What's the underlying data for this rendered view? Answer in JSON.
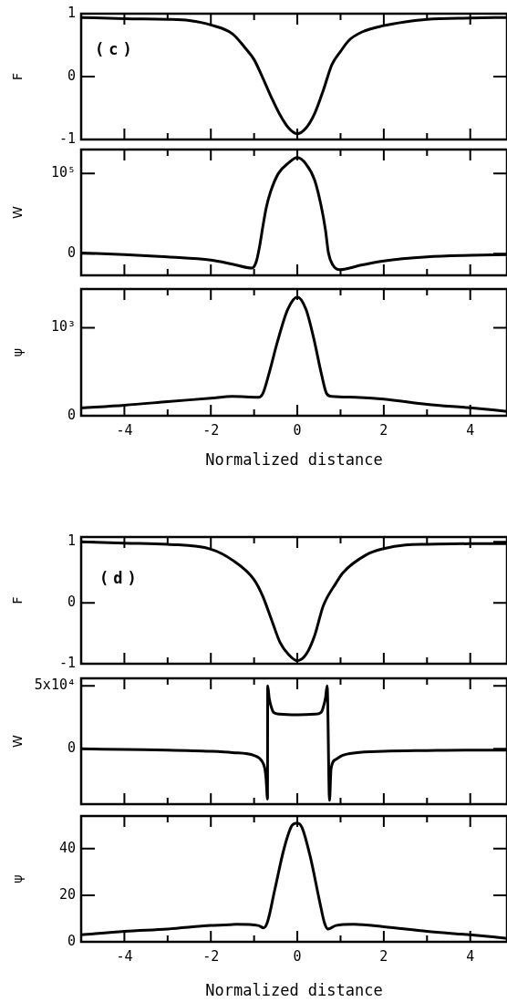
{
  "chart_data": [
    {
      "type": "line",
      "ylabel": "F",
      "annotations": [
        "(c)"
      ],
      "color": "#000000",
      "x": [
        -5,
        -4,
        -3,
        -2.5,
        -2,
        -1.5,
        -1.2,
        -1,
        -0.8,
        -0.6,
        -0.4,
        -0.2,
        0,
        0.2,
        0.4,
        0.6,
        0.8,
        1,
        1.2,
        1.5,
        2,
        2.5,
        3,
        4,
        4.85
      ],
      "values": [
        0.94,
        0.92,
        0.91,
        0.89,
        0.82,
        0.68,
        0.45,
        0.27,
        -0.02,
        -0.33,
        -0.61,
        -0.82,
        -0.91,
        -0.82,
        -0.59,
        -0.22,
        0.19,
        0.4,
        0.58,
        0.71,
        0.81,
        0.87,
        0.91,
        0.93,
        0.94
      ],
      "xlim": [
        -5,
        4.85
      ],
      "xticks": [
        -4,
        {
          "value": -3,
          "label": null
        },
        -2,
        {
          "value": -1,
          "label": null
        },
        0,
        {
          "value": 1,
          "label": null
        },
        2,
        {
          "value": 3,
          "label": null
        },
        4
      ],
      "ylim": [
        -1,
        1
      ],
      "yticks": [
        -1,
        0,
        1
      ],
      "tick_labels": "y"
    },
    {
      "type": "line",
      "ylabel": "W",
      "color": "#000000",
      "x": [
        -5,
        -4,
        -3,
        -2,
        -1.5,
        -1.05,
        -0.95,
        -0.87,
        -0.8,
        -0.72,
        -0.62,
        -0.44,
        -0.21,
        0,
        0.2,
        0.4,
        0.55,
        0.65,
        0.72,
        0.82,
        0.98,
        1.5,
        2,
        3,
        4,
        4.85
      ],
      "values": [
        1000,
        -1000,
        -4000,
        -8000,
        -13000,
        -18000,
        -10000,
        10000,
        33000,
        57000,
        77000,
        100000,
        113000,
        120000,
        112000,
        92000,
        60000,
        30000,
        1000,
        -14000,
        -20000,
        -14000,
        -9000,
        -4000,
        -2000,
        -1000
      ],
      "xlim": [
        -5,
        4.85
      ],
      "xticks": [
        -4,
        {
          "value": -3,
          "label": null
        },
        -2,
        {
          "value": -1,
          "label": null
        },
        0,
        {
          "value": 1,
          "label": null
        },
        2,
        {
          "value": 3,
          "label": null
        },
        4
      ],
      "ylim": [
        -27000,
        130000
      ],
      "yticks": [
        0,
        {
          "value": 100000,
          "label": "10⁵"
        }
      ],
      "tick_labels": "y"
    },
    {
      "type": "line",
      "ylabel": "ψ",
      "xlabel": "Normalized distance",
      "color": "#000000",
      "x": [
        -5,
        -4,
        -3,
        -2,
        -1.5,
        -0.9,
        -0.8,
        -0.66,
        -0.46,
        -0.22,
        0,
        0.2,
        0.38,
        0.56,
        0.68,
        0.8,
        1.35,
        2,
        3,
        4,
        4.85
      ],
      "values": [
        90,
        120,
        160,
        200,
        220,
        210,
        250,
        470,
        840,
        1210,
        1350,
        1210,
        880,
        470,
        250,
        220,
        210,
        190,
        130,
        90,
        50
      ],
      "xlim": [
        -5,
        4.85
      ],
      "xticks": [
        -4,
        {
          "value": -3,
          "label": null
        },
        -2,
        {
          "value": -1,
          "label": null
        },
        0,
        {
          "value": 1,
          "label": null
        },
        2,
        {
          "value": 3,
          "label": null
        },
        4
      ],
      "ylim": [
        0,
        1440
      ],
      "yticks": [
        0,
        {
          "value": 1000,
          "label": "10³"
        }
      ]
    },
    {
      "type": "line",
      "ylabel": "F",
      "annotations": [
        "(d)"
      ],
      "color": "#000000",
      "x": [
        -5,
        -4,
        -3,
        -2,
        -1.5,
        -1,
        -0.8,
        -0.6,
        -0.4,
        -0.2,
        0,
        0.2,
        0.4,
        0.6,
        0.9,
        1.05,
        1.6,
        2,
        2.5,
        3,
        4,
        4.85
      ],
      "values": [
        1.0,
        0.98,
        0.96,
        0.88,
        0.7,
        0.38,
        0.11,
        -0.27,
        -0.65,
        -0.85,
        -0.95,
        -0.85,
        -0.54,
        -0.05,
        0.33,
        0.49,
        0.79,
        0.89,
        0.95,
        0.96,
        0.97,
        0.97
      ],
      "xlim": [
        -5,
        4.85
      ],
      "xticks": [
        -4,
        {
          "value": -3,
          "label": null
        },
        -2,
        {
          "value": -1,
          "label": null
        },
        0,
        {
          "value": 1,
          "label": null
        },
        2,
        {
          "value": 3,
          "label": null
        },
        4
      ],
      "ylim": [
        -1,
        1.08
      ],
      "yticks": [
        -1,
        0,
        1
      ],
      "tick_labels": "y"
    },
    {
      "type": "line",
      "ylabel": "W",
      "color": "#000000",
      "x": [
        -5,
        -4,
        -3,
        -2,
        -1.5,
        -1,
        -0.82,
        -0.75,
        -0.72,
        -0.69,
        -0.685,
        -0.65,
        -0.6,
        -0.55,
        -0.4,
        0,
        0.4,
        0.55,
        0.6,
        0.65,
        0.69,
        0.745,
        0.78,
        0.89,
        1.04,
        1.34,
        2,
        3,
        4,
        4.85
      ],
      "values": [
        0,
        -500,
        -1000,
        -2000,
        -3000,
        -5300,
        -9700,
        -16000,
        -25000,
        -40000,
        50000,
        40000,
        33000,
        29000,
        27500,
        27000,
        27500,
        29000,
        33000,
        40000,
        50000,
        -41000,
        -16000,
        -8500,
        -5300,
        -3200,
        -2000,
        -1400,
        -1000,
        -1000
      ],
      "xlim": [
        -5,
        4.85
      ],
      "xticks": [
        -4,
        {
          "value": -3,
          "label": null
        },
        -2,
        {
          "value": -1,
          "label": null
        },
        0,
        {
          "value": 1,
          "label": null
        },
        2,
        {
          "value": 3,
          "label": null
        },
        4
      ],
      "ylim": [
        -44000,
        56000
      ],
      "yticks": [
        0,
        {
          "value": 50000,
          "label": "5x10⁴"
        }
      ],
      "tick_labels": "y"
    },
    {
      "type": "line",
      "ylabel": "ψ",
      "xlabel": "Normalized distance",
      "color": "#000000",
      "x": [
        -5,
        -4,
        -3,
        -2,
        -1.4,
        -0.9,
        -0.78,
        -0.69,
        -0.52,
        -0.3,
        -0.12,
        0,
        0.11,
        0.3,
        0.52,
        0.63,
        0.71,
        0.89,
        1.3,
        2,
        3,
        4,
        4.85
      ],
      "values": [
        3,
        4.5,
        5.5,
        7,
        7.5,
        7,
        6,
        8.5,
        22.5,
        40.5,
        50,
        51,
        49,
        36.5,
        17,
        8,
        5.5,
        7,
        7.5,
        6.5,
        4.5,
        3,
        1.5
      ],
      "xlim": [
        -5,
        4.85
      ],
      "xticks": [
        -4,
        {
          "value": -3,
          "label": null
        },
        -2,
        {
          "value": -1,
          "label": null
        },
        0,
        {
          "value": 1,
          "label": null
        },
        2,
        {
          "value": 3,
          "label": null
        },
        4
      ],
      "ylim": [
        0,
        54
      ],
      "yticks": [
        0,
        20,
        40
      ]
    }
  ]
}
